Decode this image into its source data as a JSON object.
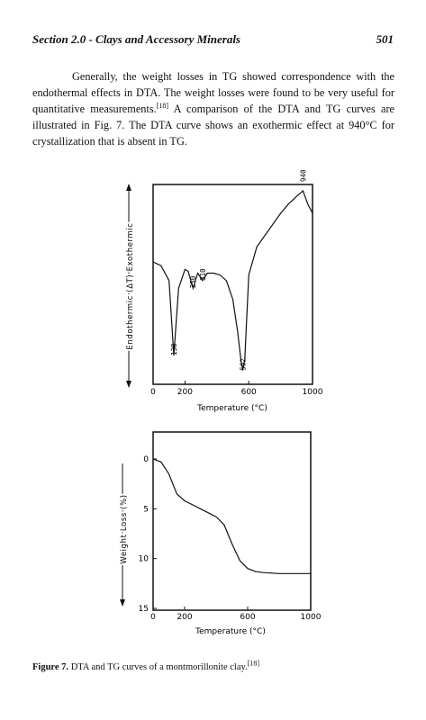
{
  "header": {
    "section": "Section 2.0 - Clays and Accessory Minerals",
    "page_number": "501"
  },
  "paragraph": {
    "text_before_ref": "Generally, the weight losses in TG showed correspondence with the endothermal effects in DTA. The weight losses were found to be very useful for quantitative measurements.",
    "ref": "[18]",
    "text_after_ref": " A comparison of the DTA and TG curves are illustrated in Fig. 7. The DTA curve shows an exothermic effect at 940°C for crystallization that is absent in TG."
  },
  "chart_data": [
    {
      "type": "line",
      "xlabel": "Temperature (°C)",
      "ylabel": "Endothermic (ΔT) Exothermic",
      "xticks": [
        "0",
        "200",
        "600",
        "1000"
      ],
      "xlim": [
        0,
        1000
      ],
      "series": [
        {
          "x": [
            0,
            50,
            100,
            130,
            160,
            200,
            220,
            250,
            280,
            310,
            340,
            380,
            420,
            460,
            500,
            530,
            550,
            562,
            575,
            600,
            650,
            700,
            750,
            800,
            850,
            900,
            940,
            970,
            1000
          ],
          "y": [
            0.62,
            0.6,
            0.52,
            0.12,
            0.48,
            0.58,
            0.57,
            0.48,
            0.56,
            0.52,
            0.56,
            0.56,
            0.55,
            0.52,
            0.42,
            0.25,
            0.1,
            0.04,
            0.1,
            0.55,
            0.7,
            0.76,
            0.82,
            0.88,
            0.93,
            0.97,
            1.0,
            0.93,
            0.88
          ]
        }
      ],
      "annotations": [
        "130",
        "250",
        "310",
        "562",
        "940"
      ]
    },
    {
      "type": "line",
      "xlabel": "Temperature (°C)",
      "ylabel": "Weight Loss (%)",
      "xticks": [
        "0",
        "200",
        "600",
        "1000"
      ],
      "yticks": [
        "0",
        "5",
        "10",
        "15"
      ],
      "xlim": [
        0,
        1000
      ],
      "ylim": [
        15,
        0
      ],
      "series": [
        {
          "x": [
            0,
            50,
            100,
            150,
            200,
            250,
            300,
            350,
            400,
            450,
            500,
            550,
            600,
            650,
            700,
            800,
            900,
            1000
          ],
          "y": [
            0,
            0.3,
            1.5,
            3.5,
            4.2,
            4.6,
            5.0,
            5.4,
            5.8,
            6.6,
            8.5,
            10.2,
            11.0,
            11.3,
            11.4,
            11.5,
            11.5,
            11.5
          ]
        }
      ]
    }
  ],
  "caption": {
    "label": "Figure 7.",
    "text": " DTA and TG curves of a montmorillonite clay.",
    "ref": "[18]"
  }
}
